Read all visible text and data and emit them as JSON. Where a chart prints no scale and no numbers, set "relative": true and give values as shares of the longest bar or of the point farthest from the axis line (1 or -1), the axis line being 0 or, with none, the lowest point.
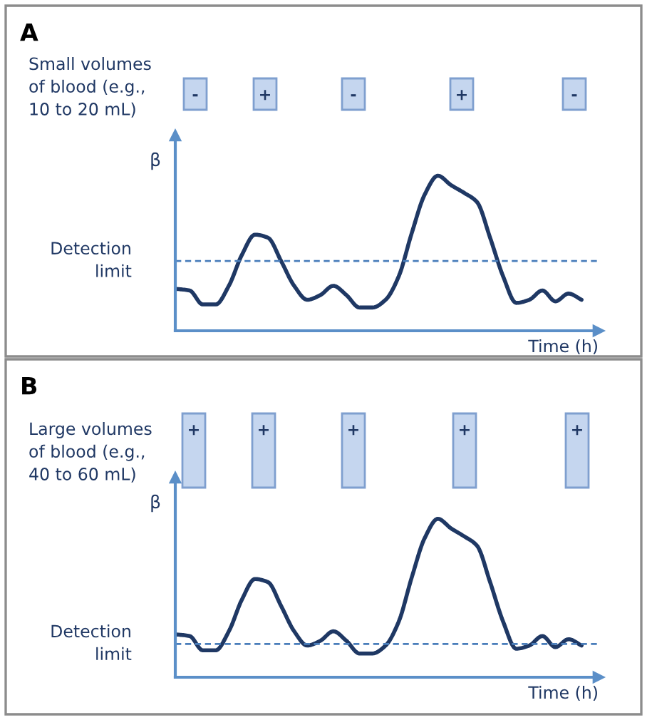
{
  "chart_data": [
    {
      "type": "line",
      "title": "A",
      "ylabel": "β",
      "xlabel": "Time (h)",
      "relative": true,
      "categories": [
        null,
        null,
        null,
        null,
        null,
        null,
        null,
        null,
        null,
        null,
        null,
        null,
        null,
        null,
        null,
        null,
        null,
        null,
        null,
        null,
        null,
        null,
        null,
        null,
        null,
        null,
        null,
        null,
        null,
        null,
        null,
        null
      ],
      "series": [
        {
          "color": "#1f3864",
          "values": [
            0.27,
            0.26,
            0.17,
            0.17,
            0.29,
            0.49,
            0.62,
            0.6,
            0.45,
            0.29,
            0.2,
            0.23,
            0.29,
            0.23,
            0.15,
            0.15,
            0.2,
            0.35,
            0.63,
            0.88,
            1.0,
            0.94,
            0.89,
            0.83,
            0.6,
            0.35,
            0.18,
            0.2,
            0.26,
            0.19,
            0.24,
            0.2
          ]
        }
      ],
      "ref_lines": [
        {
          "axis": "y",
          "value": 0.45,
          "label": "Detection\nlimit",
          "color": "#4a7ebb",
          "line_style": "dashed"
        }
      ],
      "annotations": [
        "Small volumes\nof blood (e.g.,\n10 to 20 mL)",
        "-",
        "+",
        "-",
        "+",
        "-"
      ]
    },
    {
      "type": "line",
      "title": "B",
      "ylabel": "β",
      "xlabel": "Time (h)",
      "relative": true,
      "categories": [
        null,
        null,
        null,
        null,
        null,
        null,
        null,
        null,
        null,
        null,
        null,
        null,
        null,
        null,
        null,
        null,
        null,
        null,
        null,
        null,
        null,
        null,
        null,
        null,
        null,
        null,
        null,
        null,
        null,
        null,
        null,
        null
      ],
      "series": [
        {
          "color": "#1f3864",
          "values": [
            0.27,
            0.26,
            0.17,
            0.17,
            0.29,
            0.49,
            0.62,
            0.6,
            0.45,
            0.29,
            0.2,
            0.23,
            0.29,
            0.23,
            0.15,
            0.15,
            0.2,
            0.35,
            0.63,
            0.88,
            1.0,
            0.94,
            0.89,
            0.83,
            0.6,
            0.35,
            0.18,
            0.2,
            0.26,
            0.19,
            0.24,
            0.2
          ]
        }
      ],
      "ref_lines": [
        {
          "axis": "y",
          "value": 0.21,
          "label": "Detection\nlimit",
          "color": "#4a7ebb",
          "line_style": "dashed"
        }
      ],
      "annotations": [
        "Large volumes\nof blood (e.g.,\n40 to 60 mL)",
        "+",
        "+",
        "+",
        "+",
        "+"
      ]
    }
  ]
}
